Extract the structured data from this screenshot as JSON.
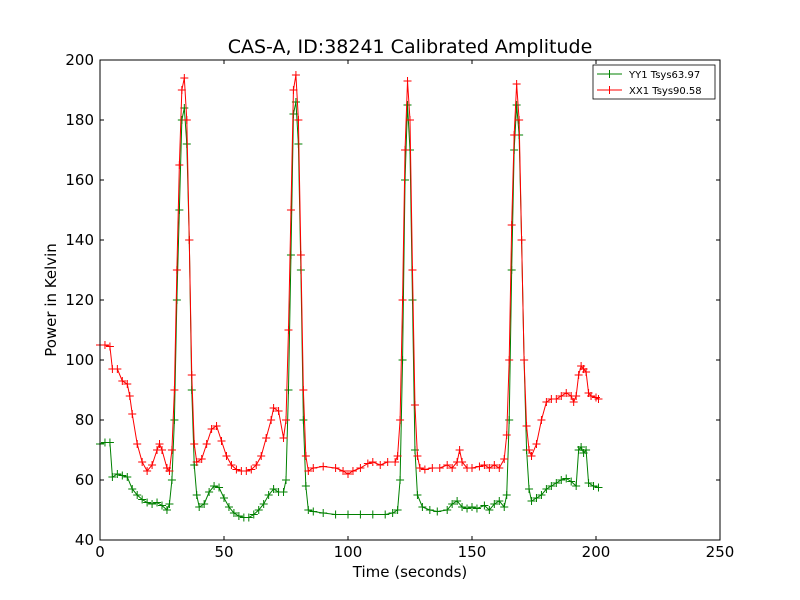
{
  "chart_data": {
    "type": "line",
    "title": "CAS-A, ID:38241 Calibrated Amplitude",
    "xlabel": "Time (seconds)",
    "ylabel": "Power in Kelvin",
    "xlim": [
      0,
      250
    ],
    "ylim": [
      40,
      200
    ],
    "xticks": [
      0,
      50,
      100,
      150,
      200,
      250
    ],
    "yticks": [
      40,
      60,
      80,
      100,
      120,
      140,
      160,
      180,
      200
    ],
    "grid": false,
    "legend_position": "upper-right",
    "marker": "+",
    "series": [
      {
        "name": "YY1 Tsys63.97",
        "color": "#008000",
        "points": [
          [
            0,
            72
          ],
          [
            2,
            72.5
          ],
          [
            4,
            72.5
          ],
          [
            5,
            61
          ],
          [
            7,
            62
          ],
          [
            9,
            61.5
          ],
          [
            11,
            61
          ],
          [
            13,
            57
          ],
          [
            15,
            55
          ],
          [
            17,
            53.5
          ],
          [
            19,
            52.5
          ],
          [
            21,
            52
          ],
          [
            23,
            52.5
          ],
          [
            25,
            51.5
          ],
          [
            27,
            50
          ],
          [
            28,
            52
          ],
          [
            29,
            60
          ],
          [
            30,
            80
          ],
          [
            31,
            120
          ],
          [
            32,
            150
          ],
          [
            33,
            180
          ],
          [
            34,
            184
          ],
          [
            35,
            172
          ],
          [
            36,
            140
          ],
          [
            37,
            90
          ],
          [
            38,
            65
          ],
          [
            39,
            55
          ],
          [
            40,
            51
          ],
          [
            42,
            52
          ],
          [
            44,
            56
          ],
          [
            46,
            58
          ],
          [
            48,
            57.5
          ],
          [
            50,
            54
          ],
          [
            52,
            51
          ],
          [
            54,
            49
          ],
          [
            56,
            48
          ],
          [
            58,
            47.5
          ],
          [
            60,
            47.5
          ],
          [
            62,
            48.5
          ],
          [
            64,
            50
          ],
          [
            66,
            52
          ],
          [
            68,
            55
          ],
          [
            70,
            57
          ],
          [
            72,
            56
          ],
          [
            74,
            56
          ],
          [
            75,
            60
          ],
          [
            76,
            90
          ],
          [
            77,
            135
          ],
          [
            78,
            182
          ],
          [
            79,
            186
          ],
          [
            80,
            172
          ],
          [
            81,
            130
          ],
          [
            82,
            80
          ],
          [
            83,
            58
          ],
          [
            84,
            50
          ],
          [
            86,
            49.5
          ],
          [
            90,
            49
          ],
          [
            95,
            48.5
          ],
          [
            100,
            48.5
          ],
          [
            105,
            48.5
          ],
          [
            110,
            48.5
          ],
          [
            115,
            48.5
          ],
          [
            118,
            49
          ],
          [
            120,
            50
          ],
          [
            121,
            60
          ],
          [
            122,
            100
          ],
          [
            123,
            160
          ],
          [
            124,
            185
          ],
          [
            125,
            170
          ],
          [
            126,
            120
          ],
          [
            127,
            70
          ],
          [
            128,
            55
          ],
          [
            130,
            51
          ],
          [
            133,
            50
          ],
          [
            136,
            49.5
          ],
          [
            140,
            50
          ],
          [
            142,
            52
          ],
          [
            144,
            53
          ],
          [
            146,
            51
          ],
          [
            148,
            50.5
          ],
          [
            150,
            51
          ],
          [
            152,
            50.5
          ],
          [
            155,
            51.5
          ],
          [
            157,
            50
          ],
          [
            159,
            52
          ],
          [
            161,
            53
          ],
          [
            163,
            51
          ],
          [
            164,
            55
          ],
          [
            165,
            80
          ],
          [
            166,
            130
          ],
          [
            167,
            170
          ],
          [
            168,
            185
          ],
          [
            169,
            175
          ],
          [
            170,
            140
          ],
          [
            171,
            100
          ],
          [
            172,
            70
          ],
          [
            173,
            57
          ],
          [
            174,
            53
          ],
          [
            176,
            54
          ],
          [
            178,
            55
          ],
          [
            180,
            57
          ],
          [
            182,
            58
          ],
          [
            184,
            59
          ],
          [
            186,
            60
          ],
          [
            188,
            60.5
          ],
          [
            190,
            59.5
          ],
          [
            192,
            58
          ],
          [
            193,
            70
          ],
          [
            194,
            71
          ],
          [
            195,
            69
          ],
          [
            196,
            70
          ],
          [
            197,
            59
          ],
          [
            199,
            58
          ],
          [
            201,
            57.5
          ]
        ]
      },
      {
        "name": "XX1 Tsys90.58",
        "color": "#ff0000",
        "points": [
          [
            0,
            105
          ],
          [
            2,
            105
          ],
          [
            4,
            104.5
          ],
          [
            5,
            97
          ],
          [
            7,
            97
          ],
          [
            9,
            93
          ],
          [
            11,
            92
          ],
          [
            12,
            88
          ],
          [
            13,
            82
          ],
          [
            15,
            72
          ],
          [
            17,
            66
          ],
          [
            19,
            63
          ],
          [
            21,
            65
          ],
          [
            23,
            70
          ],
          [
            24,
            72
          ],
          [
            25,
            70
          ],
          [
            27,
            64
          ],
          [
            28,
            63
          ],
          [
            29,
            70
          ],
          [
            30,
            90
          ],
          [
            31,
            130
          ],
          [
            32,
            165
          ],
          [
            33,
            190
          ],
          [
            34,
            194
          ],
          [
            35,
            180
          ],
          [
            36,
            140
          ],
          [
            37,
            95
          ],
          [
            38,
            72
          ],
          [
            39,
            66
          ],
          [
            41,
            67
          ],
          [
            43,
            72
          ],
          [
            45,
            77
          ],
          [
            47,
            78
          ],
          [
            49,
            73
          ],
          [
            51,
            68
          ],
          [
            53,
            65
          ],
          [
            55,
            63.5
          ],
          [
            57,
            63
          ],
          [
            59,
            63
          ],
          [
            61,
            63.5
          ],
          [
            63,
            65
          ],
          [
            65,
            68
          ],
          [
            67,
            74
          ],
          [
            69,
            80
          ],
          [
            70,
            84
          ],
          [
            72,
            83
          ],
          [
            74,
            74
          ],
          [
            75,
            80
          ],
          [
            76,
            110
          ],
          [
            77,
            150
          ],
          [
            78,
            190
          ],
          [
            79,
            195
          ],
          [
            80,
            180
          ],
          [
            81,
            135
          ],
          [
            82,
            90
          ],
          [
            83,
            68
          ],
          [
            84,
            63
          ],
          [
            86,
            64
          ],
          [
            90,
            64.5
          ],
          [
            95,
            64
          ],
          [
            98,
            63
          ],
          [
            100,
            62
          ],
          [
            102,
            63
          ],
          [
            105,
            64
          ],
          [
            108,
            65.5
          ],
          [
            110,
            66
          ],
          [
            113,
            65
          ],
          [
            116,
            66
          ],
          [
            119,
            66
          ],
          [
            120,
            68
          ],
          [
            121,
            80
          ],
          [
            122,
            120
          ],
          [
            123,
            170
          ],
          [
            124,
            193
          ],
          [
            125,
            180
          ],
          [
            126,
            130
          ],
          [
            127,
            85
          ],
          [
            128,
            68
          ],
          [
            129,
            64
          ],
          [
            131,
            63.5
          ],
          [
            134,
            64
          ],
          [
            137,
            64
          ],
          [
            140,
            65
          ],
          [
            142,
            64
          ],
          [
            144,
            66
          ],
          [
            145,
            70
          ],
          [
            146,
            66
          ],
          [
            148,
            64
          ],
          [
            150,
            64
          ],
          [
            153,
            64.5
          ],
          [
            155,
            65
          ],
          [
            157,
            64
          ],
          [
            159,
            65
          ],
          [
            161,
            64
          ],
          [
            163,
            67
          ],
          [
            164,
            75
          ],
          [
            165,
            100
          ],
          [
            166,
            145
          ],
          [
            167,
            175
          ],
          [
            168,
            192
          ],
          [
            169,
            180
          ],
          [
            170,
            140
          ],
          [
            171,
            100
          ],
          [
            172,
            78
          ],
          [
            173,
            70
          ],
          [
            174,
            68
          ],
          [
            176,
            72
          ],
          [
            178,
            80
          ],
          [
            180,
            86
          ],
          [
            182,
            87
          ],
          [
            184,
            87
          ],
          [
            186,
            88
          ],
          [
            188,
            89
          ],
          [
            190,
            88
          ],
          [
            191,
            86
          ],
          [
            192,
            88
          ],
          [
            193,
            95
          ],
          [
            194,
            98
          ],
          [
            195,
            97
          ],
          [
            196,
            96
          ],
          [
            197,
            89
          ],
          [
            198,
            88
          ],
          [
            200,
            87.5
          ],
          [
            201,
            87
          ]
        ]
      }
    ]
  }
}
